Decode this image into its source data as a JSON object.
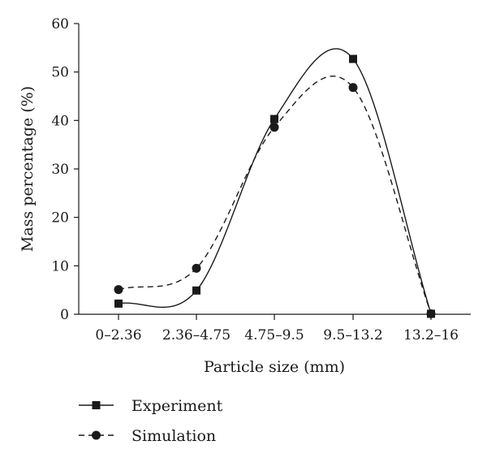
{
  "chart_data": {
    "type": "line",
    "title": "",
    "xlabel": "Particle size (mm)",
    "ylabel": "Mass percentage (%)",
    "categories": [
      "0–2.36",
      "2.36–4.75",
      "4.75–9.5",
      "9.5–13.2",
      "13.2–16"
    ],
    "ylim": [
      0,
      60
    ],
    "yticks": [
      "0",
      "10",
      "20",
      "30",
      "40",
      "50",
      "60"
    ],
    "grid": false,
    "legend_position": "bottom-left",
    "series": [
      {
        "name": "Experiment",
        "values": [
          2.2,
          4.9,
          40.3,
          52.7,
          0.1
        ],
        "marker": "square",
        "line_style": "solid",
        "color": "#1a1a1a"
      },
      {
        "name": "Simulation",
        "values": [
          5.1,
          9.5,
          38.6,
          46.8,
          0.1
        ],
        "marker": "circle",
        "line_style": "dashed",
        "color": "#1a1a1a"
      }
    ]
  }
}
